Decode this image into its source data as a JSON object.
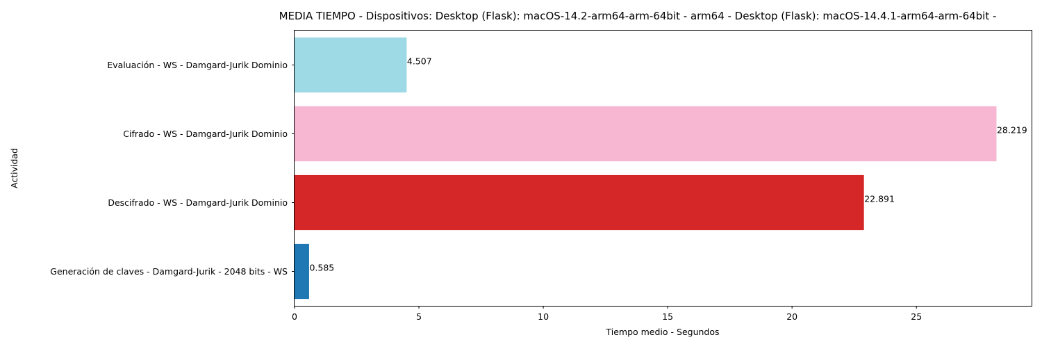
{
  "chart_data": {
    "type": "bar",
    "orientation": "horizontal",
    "title": "MEDIA TIEMPO - Dispositivos: Desktop (Flask): macOS-14.2-arm64-arm-64bit - arm64 - Desktop (Flask): macOS-14.4.1-arm64-arm-64bit -",
    "xlabel": "Tiempo medio - Segundos",
    "ylabel": "Actividad",
    "xlim": [
      0,
      29.63
    ],
    "xticks": [
      0,
      5,
      10,
      15,
      20,
      25
    ],
    "xtick_labels": [
      "0",
      "5",
      "10",
      "15",
      "20",
      "25"
    ],
    "grid": false,
    "categories": [
      "Evaluación - WS - Damgard-Jurik Dominio",
      "Cifrado - WS - Damgard-Jurik Dominio",
      "Descifrado - WS - Damgard-Jurik Dominio",
      "Generación de claves - Damgard-Jurik - 2048 bits - WS"
    ],
    "values": [
      4.507,
      28.219,
      22.891,
      0.585
    ],
    "value_labels": [
      "4.507",
      "28.219",
      "22.891",
      "0.585"
    ],
    "colors": [
      "#9edae5",
      "#f7b6d2",
      "#d62728",
      "#1f77b4"
    ]
  }
}
